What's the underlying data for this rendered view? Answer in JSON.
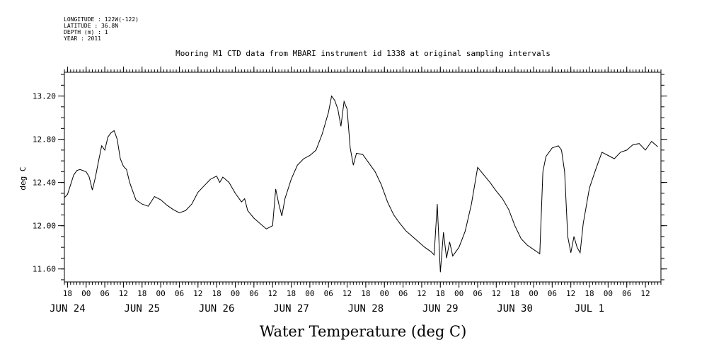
{
  "meta": {
    "longitude": "LONGITUDE : 122W(-122)",
    "latitude": "LATITUDE : 36.8N",
    "depth": "DEPTH (m) : 1",
    "year": "YEAR : 2011"
  },
  "chart_data": {
    "type": "line",
    "title": "Mooring M1 CTD data from MBARI instrument id 1338 at original sampling intervals",
    "xlabel": "Water Temperature (deg C)",
    "ylabel": "deg C",
    "ylim": [
      11.48,
      13.42
    ],
    "xlim": [
      "2011-06-23T17:00",
      "2011-07-01T17:00"
    ],
    "yticks": [
      "11.60",
      "12.00",
      "12.40",
      "12.80",
      "13.20"
    ],
    "hour_ticks": [
      {
        "t": "2011-06-23T18:00",
        "label": "18"
      },
      {
        "t": "2011-06-24T00:00",
        "label": "00"
      },
      {
        "t": "2011-06-24T06:00",
        "label": "06"
      },
      {
        "t": "2011-06-24T12:00",
        "label": "12"
      },
      {
        "t": "2011-06-24T18:00",
        "label": "18"
      },
      {
        "t": "2011-06-25T00:00",
        "label": "00"
      },
      {
        "t": "2011-06-25T06:00",
        "label": "06"
      },
      {
        "t": "2011-06-25T12:00",
        "label": "12"
      },
      {
        "t": "2011-06-25T18:00",
        "label": "18"
      },
      {
        "t": "2011-06-26T00:00",
        "label": "00"
      },
      {
        "t": "2011-06-26T06:00",
        "label": "06"
      },
      {
        "t": "2011-06-26T12:00",
        "label": "12"
      },
      {
        "t": "2011-06-26T18:00",
        "label": "18"
      },
      {
        "t": "2011-06-27T00:00",
        "label": "00"
      },
      {
        "t": "2011-06-27T06:00",
        "label": "06"
      },
      {
        "t": "2011-06-27T12:00",
        "label": "12"
      },
      {
        "t": "2011-06-27T18:00",
        "label": "18"
      },
      {
        "t": "2011-06-28T00:00",
        "label": "00"
      },
      {
        "t": "2011-06-28T06:00",
        "label": "06"
      },
      {
        "t": "2011-06-28T12:00",
        "label": "12"
      },
      {
        "t": "2011-06-28T18:00",
        "label": "18"
      },
      {
        "t": "2011-06-29T00:00",
        "label": "00"
      },
      {
        "t": "2011-06-29T06:00",
        "label": "06"
      },
      {
        "t": "2011-06-29T12:00",
        "label": "12"
      },
      {
        "t": "2011-06-29T18:00",
        "label": "18"
      },
      {
        "t": "2011-06-30T00:00",
        "label": "00"
      },
      {
        "t": "2011-06-30T06:00",
        "label": "06"
      },
      {
        "t": "2011-06-30T12:00",
        "label": "12"
      },
      {
        "t": "2011-06-30T18:00",
        "label": "18"
      },
      {
        "t": "2011-07-01T00:00",
        "label": "00"
      },
      {
        "t": "2011-07-01T06:00",
        "label": "06"
      },
      {
        "t": "2011-07-01T12:00",
        "label": "12"
      }
    ],
    "day_labels": [
      {
        "t": "2011-06-23T18:00",
        "label": "JUN 24"
      },
      {
        "t": "2011-06-24T18:00",
        "label": "JUN 25"
      },
      {
        "t": "2011-06-25T18:00",
        "label": "JUN 26"
      },
      {
        "t": "2011-06-26T18:00",
        "label": "JUN 27"
      },
      {
        "t": "2011-06-27T18:00",
        "label": "JUN 28"
      },
      {
        "t": "2011-06-28T18:00",
        "label": "JUN 29"
      },
      {
        "t": "2011-06-29T18:00",
        "label": "JUN 30"
      },
      {
        "t": "2011-06-30T18:00",
        "label": "JUL 1"
      }
    ],
    "series": [
      {
        "points": [
          [
            "2011-06-23T17:00",
            12.26
          ],
          [
            "2011-06-23T18:00",
            12.29
          ],
          [
            "2011-06-23T19:00",
            12.38
          ],
          [
            "2011-06-23T20:00",
            12.47
          ],
          [
            "2011-06-23T21:00",
            12.51
          ],
          [
            "2011-06-23T22:00",
            12.52
          ],
          [
            "2011-06-24T00:00",
            12.5
          ],
          [
            "2011-06-24T01:00",
            12.45
          ],
          [
            "2011-06-24T02:00",
            12.33
          ],
          [
            "2011-06-24T03:00",
            12.45
          ],
          [
            "2011-06-24T04:00",
            12.6
          ],
          [
            "2011-06-24T05:00",
            12.74
          ],
          [
            "2011-06-24T06:00",
            12.7
          ],
          [
            "2011-06-24T07:00",
            12.82
          ],
          [
            "2011-06-24T08:00",
            12.86
          ],
          [
            "2011-06-24T09:00",
            12.88
          ],
          [
            "2011-06-24T10:00",
            12.8
          ],
          [
            "2011-06-24T11:00",
            12.62
          ],
          [
            "2011-06-24T12:00",
            12.55
          ],
          [
            "2011-06-24T13:00",
            12.52
          ],
          [
            "2011-06-24T14:00",
            12.4
          ],
          [
            "2011-06-24T16:00",
            12.24
          ],
          [
            "2011-06-24T18:00",
            12.2
          ],
          [
            "2011-06-24T20:00",
            12.18
          ],
          [
            "2011-06-24T22:00",
            12.27
          ],
          [
            "2011-06-25T00:00",
            12.24
          ],
          [
            "2011-06-25T02:00",
            12.19
          ],
          [
            "2011-06-25T04:00",
            12.15
          ],
          [
            "2011-06-25T06:00",
            12.12
          ],
          [
            "2011-06-25T08:00",
            12.14
          ],
          [
            "2011-06-25T10:00",
            12.2
          ],
          [
            "2011-06-25T12:00",
            12.31
          ],
          [
            "2011-06-25T14:00",
            12.37
          ],
          [
            "2011-06-25T16:00",
            12.43
          ],
          [
            "2011-06-25T18:00",
            12.46
          ],
          [
            "2011-06-25T19:00",
            12.4
          ],
          [
            "2011-06-25T20:00",
            12.45
          ],
          [
            "2011-06-25T22:00",
            12.4
          ],
          [
            "2011-06-26T00:00",
            12.3
          ],
          [
            "2011-06-26T02:00",
            12.22
          ],
          [
            "2011-06-26T03:00",
            12.25
          ],
          [
            "2011-06-26T04:00",
            12.14
          ],
          [
            "2011-06-26T06:00",
            12.07
          ],
          [
            "2011-06-26T08:00",
            12.02
          ],
          [
            "2011-06-26T10:00",
            11.97
          ],
          [
            "2011-06-26T12:00",
            12.0
          ],
          [
            "2011-06-26T13:00",
            12.34
          ],
          [
            "2011-06-26T14:00",
            12.2
          ],
          [
            "2011-06-26T15:00",
            12.09
          ],
          [
            "2011-06-26T16:00",
            12.25
          ],
          [
            "2011-06-26T18:00",
            12.43
          ],
          [
            "2011-06-26T20:00",
            12.56
          ],
          [
            "2011-06-26T22:00",
            12.62
          ],
          [
            "2011-06-27T00:00",
            12.65
          ],
          [
            "2011-06-27T02:00",
            12.7
          ],
          [
            "2011-06-27T04:00",
            12.85
          ],
          [
            "2011-06-27T06:00",
            13.05
          ],
          [
            "2011-06-27T07:00",
            13.2
          ],
          [
            "2011-06-27T08:00",
            13.16
          ],
          [
            "2011-06-27T09:00",
            13.08
          ],
          [
            "2011-06-27T10:00",
            12.92
          ],
          [
            "2011-06-27T11:00",
            13.15
          ],
          [
            "2011-06-27T12:00",
            13.08
          ],
          [
            "2011-06-27T13:00",
            12.72
          ],
          [
            "2011-06-27T14:00",
            12.56
          ],
          [
            "2011-06-27T15:00",
            12.67
          ],
          [
            "2011-06-27T17:00",
            12.66
          ],
          [
            "2011-06-27T19:00",
            12.58
          ],
          [
            "2011-06-27T21:00",
            12.5
          ],
          [
            "2011-06-27T23:00",
            12.38
          ],
          [
            "2011-06-28T01:00",
            12.22
          ],
          [
            "2011-06-28T03:00",
            12.1
          ],
          [
            "2011-06-28T05:00",
            12.02
          ],
          [
            "2011-06-28T07:00",
            11.95
          ],
          [
            "2011-06-28T09:00",
            11.9
          ],
          [
            "2011-06-28T11:00",
            11.85
          ],
          [
            "2011-06-28T13:00",
            11.8
          ],
          [
            "2011-06-28T15:00",
            11.76
          ],
          [
            "2011-06-28T16:00",
            11.73
          ],
          [
            "2011-06-28T17:00",
            12.2
          ],
          [
            "2011-06-28T18:00",
            11.57
          ],
          [
            "2011-06-28T19:00",
            11.94
          ],
          [
            "2011-06-28T20:00",
            11.7
          ],
          [
            "2011-06-28T21:00",
            11.85
          ],
          [
            "2011-06-28T22:00",
            11.72
          ],
          [
            "2011-06-29T00:00",
            11.8
          ],
          [
            "2011-06-29T02:00",
            11.95
          ],
          [
            "2011-06-29T04:00",
            12.2
          ],
          [
            "2011-06-29T06:00",
            12.54
          ],
          [
            "2011-06-29T08:00",
            12.47
          ],
          [
            "2011-06-29T10:00",
            12.4
          ],
          [
            "2011-06-29T12:00",
            12.32
          ],
          [
            "2011-06-29T14:00",
            12.25
          ],
          [
            "2011-06-29T16:00",
            12.15
          ],
          [
            "2011-06-29T18:00",
            12.0
          ],
          [
            "2011-06-29T20:00",
            11.88
          ],
          [
            "2011-06-29T22:00",
            11.82
          ],
          [
            "2011-06-30T00:00",
            11.78
          ],
          [
            "2011-06-30T02:00",
            11.74
          ],
          [
            "2011-06-30T03:00",
            12.5
          ],
          [
            "2011-06-30T04:00",
            12.64
          ],
          [
            "2011-06-30T06:00",
            12.72
          ],
          [
            "2011-06-30T08:00",
            12.74
          ],
          [
            "2011-06-30T09:00",
            12.7
          ],
          [
            "2011-06-30T10:00",
            12.5
          ],
          [
            "2011-06-30T11:00",
            11.9
          ],
          [
            "2011-06-30T12:00",
            11.75
          ],
          [
            "2011-06-30T13:00",
            11.9
          ],
          [
            "2011-06-30T14:00",
            11.8
          ],
          [
            "2011-06-30T15:00",
            11.75
          ],
          [
            "2011-06-30T16:00",
            12.02
          ],
          [
            "2011-06-30T18:00",
            12.35
          ],
          [
            "2011-06-30T20:00",
            12.52
          ],
          [
            "2011-06-30T22:00",
            12.68
          ],
          [
            "2011-07-01T00:00",
            12.65
          ],
          [
            "2011-07-01T02:00",
            12.62
          ],
          [
            "2011-07-01T04:00",
            12.68
          ],
          [
            "2011-07-01T06:00",
            12.7
          ],
          [
            "2011-07-01T08:00",
            12.75
          ],
          [
            "2011-07-01T10:00",
            12.76
          ],
          [
            "2011-07-01T12:00",
            12.7
          ],
          [
            "2011-07-01T14:00",
            12.78
          ],
          [
            "2011-07-01T16:00",
            12.73
          ]
        ]
      }
    ]
  }
}
